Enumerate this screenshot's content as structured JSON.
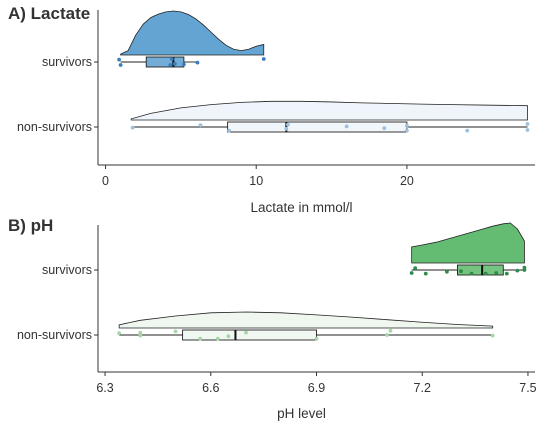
{
  "chart_data": [
    {
      "type": "raincloud",
      "panel_label": "A) Lactate",
      "xlabel": "Lactate in mmol/l",
      "xlim": [
        -0.5,
        28.5
      ],
      "xticks": [
        0,
        10,
        20
      ],
      "categories": [
        "survivors",
        "non-survivors"
      ],
      "series": [
        {
          "name": "survivors",
          "color": "#3a7dbf",
          "fill": "#5b9fd0",
          "box": {
            "min": 1.0,
            "q1": 2.7,
            "median": 4.5,
            "q3": 5.2,
            "max": 6.0
          },
          "density": [
            [
              1.0,
              0.02
            ],
            [
              1.5,
              0.1
            ],
            [
              2.0,
              0.45
            ],
            [
              2.5,
              0.7
            ],
            [
              3.0,
              0.85
            ],
            [
              3.5,
              0.93
            ],
            [
              4.0,
              0.98
            ],
            [
              4.5,
              1.0
            ],
            [
              5.0,
              0.98
            ],
            [
              5.5,
              0.92
            ],
            [
              6.0,
              0.82
            ],
            [
              6.5,
              0.68
            ],
            [
              7.0,
              0.52
            ],
            [
              7.5,
              0.36
            ],
            [
              8.0,
              0.22
            ],
            [
              8.5,
              0.13
            ],
            [
              9.0,
              0.1
            ],
            [
              9.5,
              0.13
            ],
            [
              10.0,
              0.2
            ],
            [
              10.5,
              0.24
            ]
          ],
          "points": [
            [
              1.0,
              0.5
            ],
            [
              0.9,
              -0.4
            ],
            [
              4.3,
              0.5
            ],
            [
              4.4,
              -0.5
            ],
            [
              4.6,
              0.3
            ],
            [
              5.2,
              0.4
            ],
            [
              6.1,
              0.1
            ],
            [
              10.5,
              -0.5
            ]
          ]
        },
        {
          "name": "non-survivors",
          "color": "#9cc0de",
          "fill": "#eef4fa",
          "box": {
            "min": 1.7,
            "q1": 8.1,
            "median": 12.0,
            "q3": 20.0,
            "max": 28.0
          },
          "density": [
            [
              1.7,
              0.05
            ],
            [
              3.0,
              0.3
            ],
            [
              5.0,
              0.55
            ],
            [
              7.0,
              0.7
            ],
            [
              9.0,
              0.8
            ],
            [
              11.0,
              0.85
            ],
            [
              13.0,
              0.85
            ],
            [
              15.0,
              0.82
            ],
            [
              17.0,
              0.78
            ],
            [
              19.0,
              0.75
            ],
            [
              21.0,
              0.72
            ],
            [
              23.0,
              0.7
            ],
            [
              25.0,
              0.68
            ],
            [
              27.0,
              0.66
            ],
            [
              28.0,
              0.65
            ]
          ],
          "points": [
            [
              1.8,
              0.1
            ],
            [
              6.3,
              -0.3
            ],
            [
              8.2,
              0.6
            ],
            [
              12.0,
              0.3
            ],
            [
              12.1,
              -0.4
            ],
            [
              16.0,
              -0.1
            ],
            [
              18.5,
              0.2
            ],
            [
              20.0,
              0.6
            ],
            [
              20.0,
              -0.2
            ],
            [
              24.0,
              0.6
            ],
            [
              28.0,
              0.5
            ],
            [
              28.0,
              -0.5
            ]
          ]
        }
      ]
    },
    {
      "type": "raincloud",
      "panel_label": "B) pH",
      "xlabel": "pH level",
      "xlim": [
        6.28,
        7.52
      ],
      "xticks": [
        6.3,
        6.6,
        6.9,
        7.2,
        7.5
      ],
      "xtick_labels": [
        "6.3",
        "6.6",
        "6.9",
        "7.2",
        "7.5"
      ],
      "categories": [
        "survivors",
        "non-survivors"
      ],
      "series": [
        {
          "name": "survivors",
          "color": "#2e8b4a",
          "fill": "#5cb86b",
          "box": {
            "min": 7.17,
            "q1": 7.3,
            "median": 7.37,
            "q3": 7.43,
            "max": 7.49
          },
          "density": [
            [
              7.17,
              0.4
            ],
            [
              7.2,
              0.45
            ],
            [
              7.24,
              0.52
            ],
            [
              7.28,
              0.62
            ],
            [
              7.32,
              0.72
            ],
            [
              7.36,
              0.82
            ],
            [
              7.4,
              0.92
            ],
            [
              7.43,
              0.98
            ],
            [
              7.45,
              1.0
            ],
            [
              7.47,
              0.85
            ],
            [
              7.49,
              0.55
            ]
          ],
          "points": [
            [
              7.17,
              0.5
            ],
            [
              7.18,
              -0.3
            ],
            [
              7.21,
              0.6
            ],
            [
              7.27,
              0.3
            ],
            [
              7.31,
              0.2
            ],
            [
              7.34,
              0.6
            ],
            [
              7.38,
              0.6
            ],
            [
              7.41,
              0.5
            ],
            [
              7.44,
              0.6
            ],
            [
              7.47,
              0.1
            ],
            [
              7.49,
              0.0
            ],
            [
              7.49,
              -0.4
            ]
          ]
        },
        {
          "name": "non-survivors",
          "color": "#a5d6a7",
          "fill": "#eef7ee",
          "box": {
            "min": 6.34,
            "q1": 6.52,
            "median": 6.67,
            "q3": 6.9,
            "max": 7.4
          },
          "density": [
            [
              6.34,
              0.2
            ],
            [
              6.4,
              0.48
            ],
            [
              6.5,
              0.75
            ],
            [
              6.6,
              0.95
            ],
            [
              6.7,
              1.0
            ],
            [
              6.8,
              0.95
            ],
            [
              6.9,
              0.82
            ],
            [
              7.0,
              0.68
            ],
            [
              7.1,
              0.52
            ],
            [
              7.2,
              0.36
            ],
            [
              7.3,
              0.22
            ],
            [
              7.4,
              0.12
            ]
          ],
          "points": [
            [
              6.34,
              -0.3
            ],
            [
              6.4,
              0.1
            ],
            [
              6.4,
              -0.4
            ],
            [
              6.5,
              -0.6
            ],
            [
              6.57,
              0.6
            ],
            [
              6.62,
              0.6
            ],
            [
              6.65,
              0.2
            ],
            [
              6.7,
              -0.4
            ],
            [
              6.9,
              0.6
            ],
            [
              7.1,
              0.0
            ],
            [
              7.11,
              -0.7
            ],
            [
              7.4,
              0.1
            ]
          ]
        }
      ]
    }
  ]
}
